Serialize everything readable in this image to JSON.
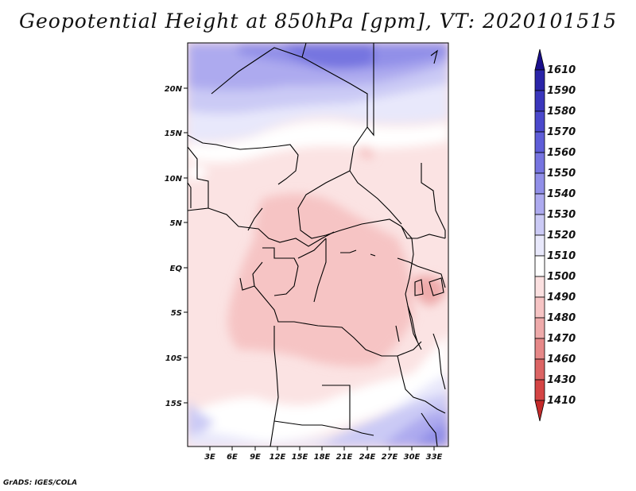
{
  "title": "Geopotential Height at 850hPa [gpm], VT: 2020101515",
  "footer": "GrADS: IGES/COLA",
  "map": {
    "lat_labels": [
      "20N",
      "15N",
      "10N",
      "5N",
      "EQ",
      "5S",
      "10S",
      "15S"
    ],
    "lon_labels": [
      "3E",
      "6E",
      "9E",
      "12E",
      "15E",
      "18E",
      "21E",
      "24E",
      "27E",
      "30E",
      "33E"
    ]
  },
  "colorbar": {
    "levels": [
      "1610",
      "1590",
      "1580",
      "1570",
      "1560",
      "1550",
      "1540",
      "1530",
      "1520",
      "1510",
      "1500",
      "1490",
      "1480",
      "1470",
      "1460",
      "1430",
      "1410"
    ],
    "colors": [
      "#1a0f8c",
      "#2a24a8",
      "#3a36bc",
      "#4b48cc",
      "#5e5dd8",
      "#7674e0",
      "#918fe8",
      "#adaaef",
      "#cbcaf5",
      "#e8e8fb",
      "#ffffff",
      "#fbe0e0",
      "#f6c4c4",
      "#eeaaaa",
      "#e68888",
      "#dc6464",
      "#d44444",
      "#c42a2a"
    ]
  }
}
